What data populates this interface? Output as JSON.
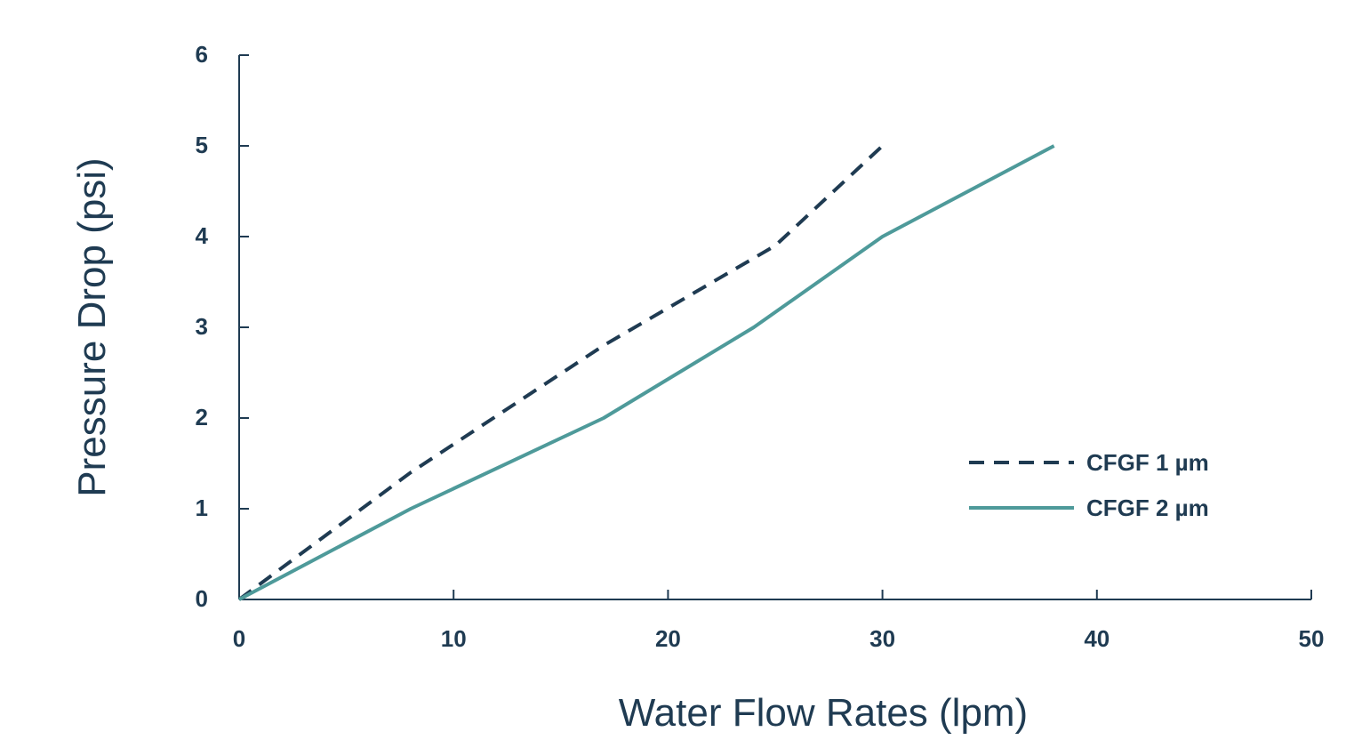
{
  "colors": {
    "axis": "#1f3b52",
    "text": "#1f3b52",
    "series_1": "#1f3b52",
    "series_2": "#4e9a9a"
  },
  "chart_data": {
    "type": "line",
    "title": "",
    "xlabel": "Water Flow Rates (lpm)",
    "ylabel": "Pressure Drop (psi)",
    "xlim": [
      0,
      50
    ],
    "ylim": [
      0,
      6
    ],
    "xticks": [
      0,
      10,
      20,
      30,
      40,
      50
    ],
    "yticks": [
      0,
      1,
      2,
      3,
      4,
      5,
      6
    ],
    "grid": false,
    "legend_position": "right",
    "series": [
      {
        "name": "CFGF 1 µm",
        "style": "dashed",
        "color": "#1f3b52",
        "x": [
          0,
          8,
          17,
          25,
          30
        ],
        "y": [
          0,
          1.4,
          2.8,
          3.9,
          5
        ]
      },
      {
        "name": "CFGF 2 µm",
        "style": "solid",
        "color": "#4e9a9a",
        "x": [
          0,
          8,
          17,
          24,
          30,
          38
        ],
        "y": [
          0,
          1,
          2,
          3,
          4,
          5
        ]
      }
    ]
  }
}
